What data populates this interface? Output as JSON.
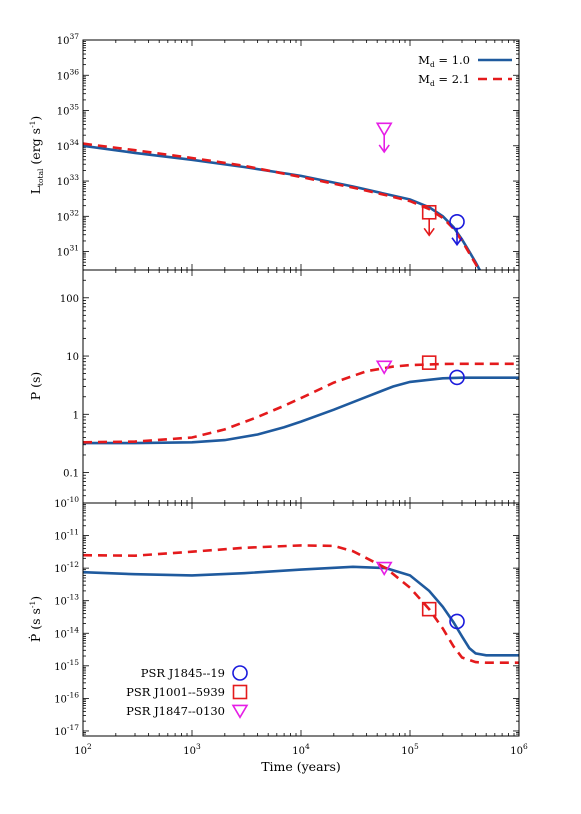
{
  "chart_data": {
    "type": "line",
    "x_axis": {
      "label": "Time (years)",
      "scale": "log",
      "range": [
        100,
        1000000
      ],
      "ticks": [
        {
          "base": "10",
          "exp": "2",
          "value": 100
        },
        {
          "base": "10",
          "exp": "3",
          "value": 1000
        },
        {
          "base": "10",
          "exp": "4",
          "value": 10000
        },
        {
          "base": "10",
          "exp": "5",
          "value": 100000
        },
        {
          "base": "10",
          "exp": "6",
          "value": 1000000
        }
      ]
    },
    "panels": [
      {
        "id": "luminosity",
        "ylabel_main": "L",
        "ylabel_sub": "total",
        "ylabel_rest": " (erg s",
        "ylabel_exp": "-1",
        "ylabel_close": ")",
        "yscale": "log",
        "ylim": [
          3e+30,
          1e+37
        ],
        "yticks": [
          {
            "base": "10",
            "exp": "31",
            "value": 1e+31
          },
          {
            "base": "10",
            "exp": "32",
            "value": 1e+32
          },
          {
            "base": "10",
            "exp": "33",
            "value": 1e+33
          },
          {
            "base": "10",
            "exp": "34",
            "value": 1e+34
          },
          {
            "base": "10",
            "exp": "35",
            "value": 1e+35
          },
          {
            "base": "10",
            "exp": "36",
            "value": 1e+36
          },
          {
            "base": "10",
            "exp": "37",
            "value": 1e+37
          }
        ],
        "series": [
          {
            "name": "Md = 1.0",
            "color": "#1f5a9e",
            "style": "solid",
            "x": [
              100,
              300,
              1000,
              3000,
              10000,
              30000,
              60000,
              100000,
              150000,
              200000,
              250000,
              300000,
              350000,
              400000,
              450000
            ],
            "y": [
              1e+34,
              6.3e+33,
              4e+33,
              2.5e+33,
              1.4e+33,
              7e+32,
              4.3e+32,
              3e+32,
              1.8e+32,
              1e+32,
              5e+31,
              2.2e+31,
              1e+31,
              5e+30,
              2.5e+30
            ]
          },
          {
            "name": "Md = 2.1",
            "color": "#e41a1c",
            "style": "dashed",
            "x": [
              100,
              300,
              1000,
              3000,
              10000,
              30000,
              60000,
              100000,
              150000,
              200000,
              250000,
              300000,
              350000,
              400000,
              450000
            ],
            "y": [
              1.15e+34,
              7.5e+33,
              4.5e+33,
              2.7e+33,
              1.3e+33,
              6.5e+32,
              4e+32,
              2.7e+32,
              1.6e+32,
              9e+31,
              4.5e+31,
              2e+31,
              9e+30,
              4.5e+30,
              2.2e+30
            ]
          }
        ],
        "points": [
          {
            "source": 0,
            "x": 270000,
            "y": 7e+31,
            "upper_limit": true
          },
          {
            "source": 1,
            "x": 150000,
            "y": 1.3e+32,
            "upper_limit": true
          },
          {
            "source": 2,
            "x": 58000,
            "y": 3e+34,
            "upper_limit": true
          }
        ]
      },
      {
        "id": "period",
        "ylabel_main": "P (s)",
        "yscale": "log",
        "ylim": [
          0.03,
          300
        ],
        "yticks": [
          {
            "text": "0.1",
            "value": 0.1
          },
          {
            "text": "1",
            "value": 1
          },
          {
            "text": "10",
            "value": 10
          },
          {
            "text": "100",
            "value": 100
          }
        ],
        "series": [
          {
            "name": "Md = 1.0",
            "color": "#1f5a9e",
            "style": "solid",
            "x": [
              100,
              300,
              1000,
              2000,
              4000,
              7000,
              10000,
              20000,
              40000,
              70000,
              100000,
              200000,
              300000,
              1000000
            ],
            "y": [
              0.32,
              0.32,
              0.33,
              0.36,
              0.45,
              0.6,
              0.75,
              1.2,
              2.0,
              3.0,
              3.6,
              4.15,
              4.25,
              4.25
            ]
          },
          {
            "name": "Md = 2.1",
            "color": "#e41a1c",
            "style": "dashed",
            "x": [
              100,
              300,
              1000,
              2000,
              4000,
              7000,
              10000,
              20000,
              40000,
              70000,
              100000,
              200000,
              300000,
              1000000
            ],
            "y": [
              0.33,
              0.34,
              0.4,
              0.55,
              0.9,
              1.4,
              1.9,
              3.5,
              5.5,
              6.6,
              7.0,
              7.3,
              7.35,
              7.35
            ]
          }
        ],
        "points": [
          {
            "source": 0,
            "x": 270000,
            "y": 4.3
          },
          {
            "source": 1,
            "x": 150000,
            "y": 7.7
          },
          {
            "source": 2,
            "x": 58000,
            "y": 6.5
          }
        ]
      },
      {
        "id": "pdot",
        "ylabel_main": "Ṗ (s s",
        "ylabel_exp": "-1",
        "ylabel_close": ")",
        "yscale": "log",
        "ylim": [
          7e-18,
          1e-10
        ],
        "yticks": [
          {
            "base": "10",
            "exp": "-17",
            "value": 1e-17
          },
          {
            "base": "10",
            "exp": "-16",
            "value": 1e-16
          },
          {
            "base": "10",
            "exp": "-15",
            "value": 1e-15
          },
          {
            "base": "10",
            "exp": "-14",
            "value": 1e-14
          },
          {
            "base": "10",
            "exp": "-13",
            "value": 1e-13
          },
          {
            "base": "10",
            "exp": "-12",
            "value": 1e-12
          },
          {
            "base": "10",
            "exp": "-11",
            "value": 1e-11
          },
          {
            "base": "10",
            "exp": "-10",
            "value": 1e-10
          }
        ],
        "series": [
          {
            "name": "Md = 1.0",
            "color": "#1f5a9e",
            "style": "solid",
            "x": [
              100,
              300,
              1000,
              3000,
              10000,
              30000,
              60000,
              100000,
              150000,
              200000,
              250000,
              300000,
              350000,
              400000,
              500000,
              700000,
              1000000
            ],
            "y": [
              7.5e-13,
              6.5e-13,
              6e-13,
              7e-13,
              9e-13,
              1.1e-12,
              1e-12,
              6e-13,
              2e-13,
              6.5e-14,
              2.2e-14,
              8e-15,
              3.5e-15,
              2.4e-15,
              2.1e-15,
              2.1e-15,
              2.1e-15
            ]
          },
          {
            "name": "Md = 2.1",
            "color": "#e41a1c",
            "style": "dashed",
            "x": [
              100,
              300,
              1000,
              3000,
              10000,
              20000,
              30000,
              60000,
              100000,
              150000,
              200000,
              250000,
              300000,
              400000,
              500000,
              700000,
              1000000
            ],
            "y": [
              2.5e-12,
              2.4e-12,
              3.2e-12,
              4.2e-12,
              5e-12,
              4.8e-12,
              3.3e-12,
              1e-12,
              2.5e-13,
              5.5e-14,
              1.4e-14,
              4e-15,
              1.8e-15,
              1.3e-15,
              1.25e-15,
              1.25e-15,
              1.25e-15
            ]
          }
        ],
        "points": [
          {
            "source": 0,
            "x": 270000,
            "y": 2.3e-14
          },
          {
            "source": 1,
            "x": 150000,
            "y": 5.5e-14
          },
          {
            "source": 2,
            "x": 58000,
            "y": 1e-12
          }
        ]
      }
    ],
    "legend_lines": [
      {
        "label_main": "M",
        "label_sub": "d",
        "label_rest": " = 1.0",
        "color": "#1f5a9e",
        "style": "solid"
      },
      {
        "label_main": "M",
        "label_sub": "d",
        "label_rest": " = 2.1",
        "color": "#e41a1c",
        "style": "dashed"
      }
    ],
    "sources": [
      {
        "name": "PSR J1845--19",
        "marker": "circle",
        "color": "#1a1adc"
      },
      {
        "name": "PSR J1001--5939",
        "marker": "square",
        "color": "#e41a1c"
      },
      {
        "name": "PSR J1847--0130",
        "marker": "triangle-down",
        "color": "#e61ee6"
      }
    ]
  }
}
